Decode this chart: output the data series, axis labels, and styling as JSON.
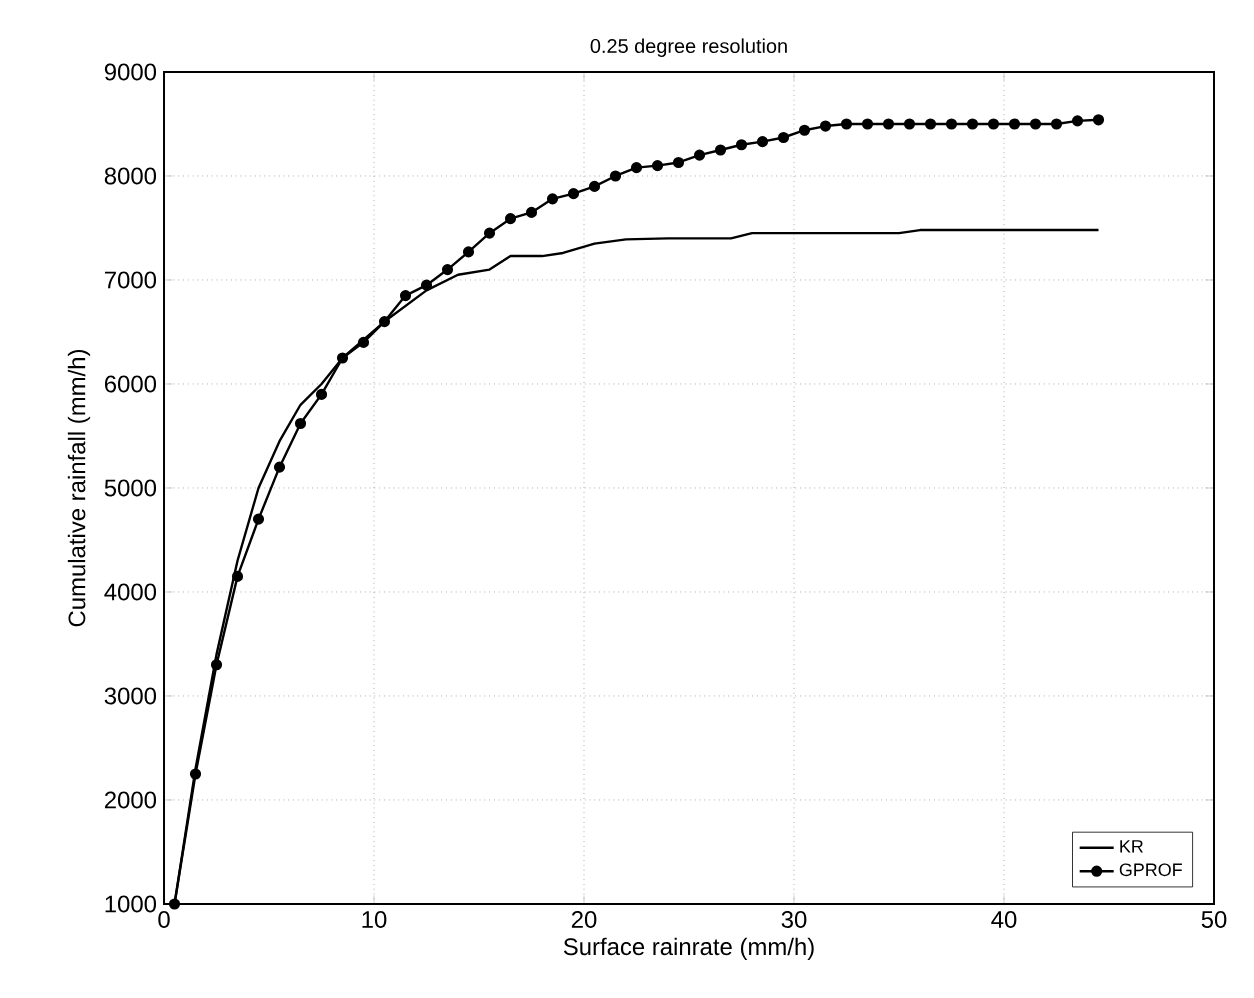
{
  "chart_data": {
    "type": "line",
    "title": "0.25 degree resolution",
    "xlabel": "Surface rainrate (mm/h)",
    "ylabel": "Cumulative rainfall (mm/h)",
    "xlim": [
      0,
      50
    ],
    "xticks": [
      0,
      10,
      20,
      30,
      40,
      50
    ],
    "ylim": [
      1000,
      9000
    ],
    "yticks": [
      1000,
      2000,
      3000,
      4000,
      5000,
      6000,
      7000,
      8000,
      9000
    ],
    "grid": true,
    "legend": "bottom right",
    "line_style": "solid",
    "series": [
      {
        "name": "KR",
        "color": "#000000",
        "marker": "none",
        "x": [
          0.5,
          1.5,
          2.5,
          3.5,
          4.5,
          5.5,
          6.5,
          7.5,
          8.5,
          10.5,
          12.5,
          14,
          15.5,
          16.5,
          18,
          19,
          20.5,
          22,
          24,
          27,
          28,
          35,
          36,
          44.5
        ],
        "values": [
          1000,
          2300,
          3400,
          4300,
          5000,
          5450,
          5800,
          6000,
          6250,
          6600,
          6900,
          7050,
          7100,
          7230,
          7230,
          7260,
          7350,
          7390,
          7400,
          7400,
          7450,
          7450,
          7480,
          7480
        ]
      },
      {
        "name": "GPROF",
        "color": "#000000",
        "marker": "circle",
        "x": [
          0.5,
          1.5,
          2.5,
          3.5,
          4.5,
          5.5,
          6.5,
          7.5,
          8.5,
          9.5,
          10.5,
          11.5,
          12.5,
          13.5,
          14.5,
          15.5,
          16.5,
          17.5,
          18.5,
          19.5,
          20.5,
          21.5,
          22.5,
          23.5,
          24.5,
          25.5,
          26.5,
          27.5,
          28.5,
          29.5,
          30.5,
          31.5,
          32.5,
          33.5,
          34.5,
          35.5,
          36.5,
          37.5,
          38.5,
          39.5,
          40.5,
          41.5,
          42.5,
          43.5,
          44.5
        ],
        "values": [
          1000,
          2250,
          3300,
          4150,
          4700,
          5200,
          5620,
          5900,
          6250,
          6400,
          6600,
          6850,
          6950,
          7100,
          7270,
          7450,
          7590,
          7650,
          7780,
          7830,
          7900,
          8000,
          8080,
          8100,
          8130,
          8200,
          8250,
          8300,
          8330,
          8370,
          8440,
          8480,
          8500,
          8500,
          8500,
          8500,
          8500,
          8500,
          8500,
          8500,
          8500,
          8500,
          8500,
          8530,
          8540
        ]
      }
    ]
  }
}
